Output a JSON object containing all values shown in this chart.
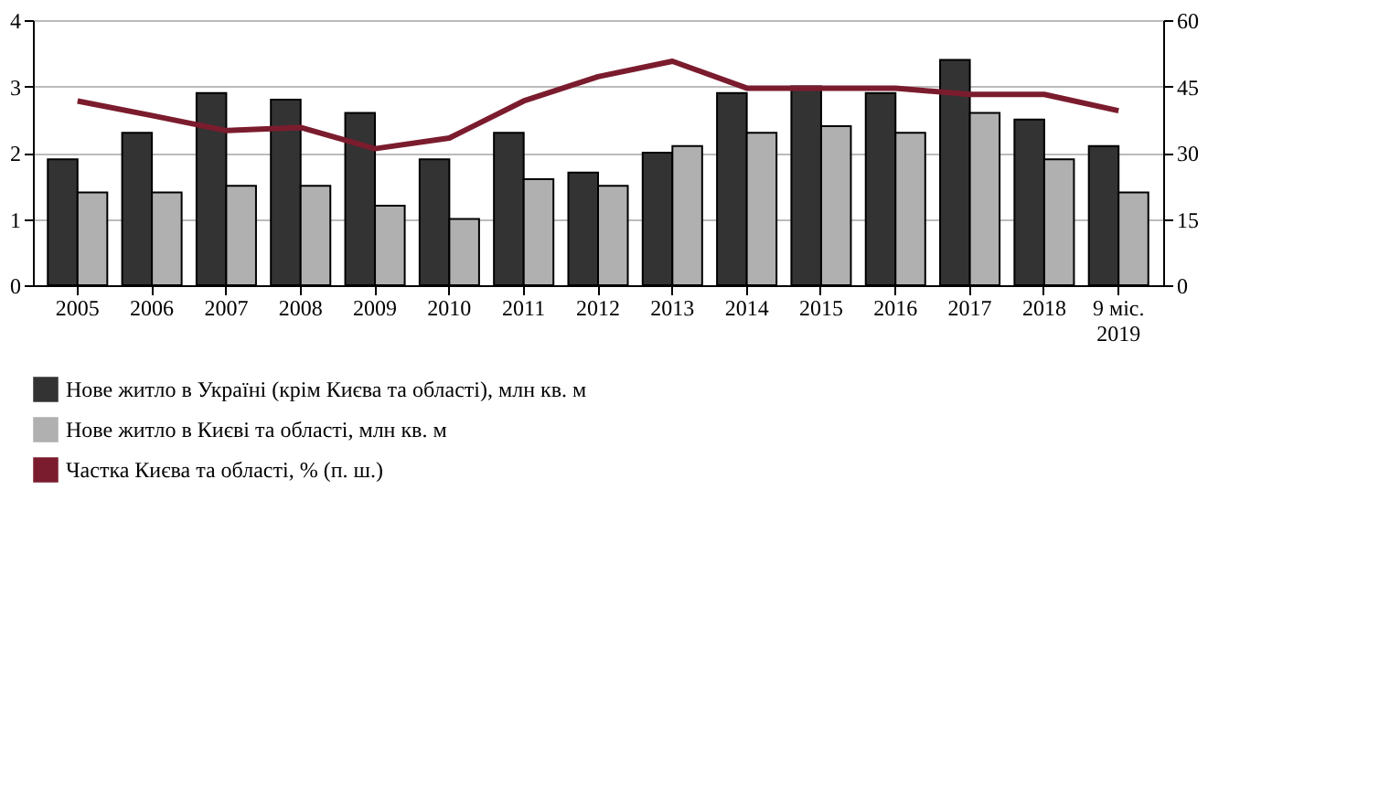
{
  "chart_data": {
    "type": "bar",
    "categories": [
      "2005",
      "2006",
      "2007",
      "2008",
      "2009",
      "2010",
      "2011",
      "2012",
      "2013",
      "2014",
      "2015",
      "2016",
      "2017",
      "2018",
      "9 міс. 2019"
    ],
    "series": [
      {
        "name": "Нове житло в Україні (крім Києва та області), млн кв. м",
        "color": "#333333",
        "values": [
          1.9,
          2.3,
          2.9,
          2.8,
          2.6,
          1.9,
          2.3,
          1.7,
          2.0,
          2.9,
          3.0,
          2.9,
          3.4,
          2.5,
          2.1
        ]
      },
      {
        "name": "Нове житло в Києві та області, млн кв. м",
        "color": "#b0b0b0",
        "values": [
          1.4,
          1.4,
          1.5,
          1.5,
          1.2,
          1.0,
          1.6,
          1.5,
          2.1,
          2.3,
          2.4,
          2.3,
          2.6,
          1.9,
          1.4
        ]
      },
      {
        "name": "Частка Києва та області, % (п. ш.)",
        "type": "line",
        "axis": "y2",
        "color": "#7b1c2e",
        "values": [
          41.7,
          38.4,
          35,
          35.7,
          30.9,
          33.3,
          41.7,
          47.2,
          50.7,
          44.6,
          44.6,
          44.6,
          43.2,
          43.2,
          39.5
        ]
      }
    ],
    "ylim": [
      0,
      4
    ],
    "yticks": [
      0,
      1,
      2,
      3,
      4
    ],
    "y2lim": [
      0,
      60
    ],
    "y2ticks": [
      0,
      15,
      30,
      45,
      60
    ],
    "grid": "y",
    "legend": "bottom"
  }
}
